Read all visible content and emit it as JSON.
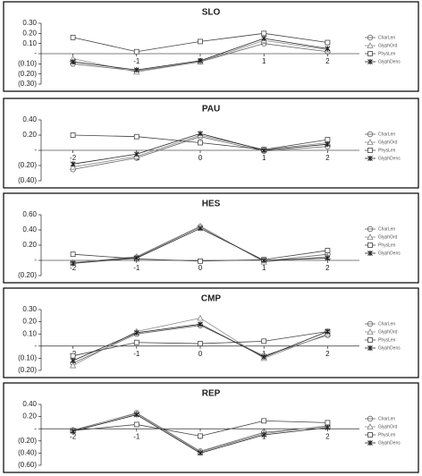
{
  "chart_data": [
    {
      "type": "line",
      "title": "SLO",
      "x": [
        -2,
        -1,
        0,
        1,
        2
      ],
      "xlim": [
        -2.5,
        2.5
      ],
      "xticks": [
        -2,
        -1,
        0,
        1,
        2
      ],
      "ylim": [
        -0.3,
        0.3
      ],
      "yticks": [
        {
          "value": 0.3,
          "label": "0.30"
        },
        {
          "value": 0.2,
          "label": "0.20"
        },
        {
          "value": 0.1,
          "label": "0.10"
        },
        {
          "value": 0,
          "label": "-"
        },
        {
          "value": -0.1,
          "label": "(0.10)"
        },
        {
          "value": -0.2,
          "label": "(0.20)"
        },
        {
          "value": -0.3,
          "label": "(0.30)"
        }
      ],
      "series": [
        {
          "name": "CharLen",
          "color": "#666666",
          "marker": "circle",
          "values": [
            -0.1,
            -0.17,
            -0.08,
            0.1,
            0.02
          ]
        },
        {
          "name": "GlyphOrd",
          "color": "#888888",
          "marker": "triangle",
          "values": [
            -0.05,
            -0.18,
            -0.08,
            0.13,
            0.04
          ]
        },
        {
          "name": "PhysLen",
          "color": "#444444",
          "marker": "square",
          "values": [
            0.16,
            0.02,
            0.12,
            0.2,
            0.11
          ]
        },
        {
          "name": "GlyphDens",
          "color": "#222222",
          "marker": "star",
          "values": [
            -0.08,
            -0.16,
            -0.07,
            0.15,
            0.05
          ]
        }
      ]
    },
    {
      "type": "line",
      "title": "PAU",
      "x": [
        -2,
        -1,
        0,
        1,
        2
      ],
      "xlim": [
        -2.5,
        2.5
      ],
      "xticks": [
        -2,
        -1,
        0,
        1,
        2
      ],
      "ylim": [
        -0.4,
        0.4
      ],
      "yticks": [
        {
          "value": 0.4,
          "label": "0.40"
        },
        {
          "value": 0.2,
          "label": "0.20"
        },
        {
          "value": 0,
          "label": "-"
        },
        {
          "value": -0.2,
          "label": "(0.20)"
        },
        {
          "value": -0.4,
          "label": "(0.40)"
        }
      ],
      "series": [
        {
          "name": "CharLen",
          "color": "#666666",
          "marker": "circle",
          "values": [
            -0.25,
            -0.1,
            0.18,
            -0.01,
            0.05
          ]
        },
        {
          "name": "GlyphOrd",
          "color": "#888888",
          "marker": "triangle",
          "values": [
            -0.22,
            -0.08,
            0.2,
            0.01,
            0.1
          ]
        },
        {
          "name": "PhysLen",
          "color": "#444444",
          "marker": "square",
          "values": [
            0.2,
            0.18,
            0.1,
            0.01,
            0.14
          ]
        },
        {
          "name": "GlyphDens",
          "color": "#222222",
          "marker": "star",
          "values": [
            -0.18,
            -0.05,
            0.22,
            0,
            0.08
          ]
        }
      ]
    },
    {
      "type": "line",
      "title": "HES",
      "x": [
        -2,
        -1,
        0,
        1,
        2
      ],
      "xlim": [
        -2.5,
        2.5
      ],
      "xticks": [
        -2,
        -1,
        0,
        1,
        2
      ],
      "ylim": [
        -0.2,
        0.6
      ],
      "yticks": [
        {
          "value": 0.6,
          "label": "0.60"
        },
        {
          "value": 0.4,
          "label": "0.40"
        },
        {
          "value": 0.2,
          "label": "0.20"
        },
        {
          "value": 0,
          "label": "-"
        },
        {
          "value": -0.2,
          "label": "(0.20)"
        }
      ],
      "series": [
        {
          "name": "CharLen",
          "color": "#666666",
          "marker": "circle",
          "values": [
            -0.03,
            0.04,
            0.44,
            -0.01,
            0.08
          ]
        },
        {
          "name": "GlyphOrd",
          "color": "#888888",
          "marker": "triangle",
          "values": [
            -0.03,
            0.05,
            0.45,
            -0.02,
            0.05
          ]
        },
        {
          "name": "PhysLen",
          "color": "#444444",
          "marker": "square",
          "values": [
            0.08,
            0.02,
            -0.01,
            0.01,
            0.13
          ]
        },
        {
          "name": "GlyphDens",
          "color": "#222222",
          "marker": "star",
          "values": [
            -0.04,
            0.03,
            0.42,
            0,
            0.03
          ]
        }
      ]
    },
    {
      "type": "line",
      "title": "CMP",
      "x": [
        -2,
        -1,
        0,
        1,
        2
      ],
      "xlim": [
        -2.5,
        2.5
      ],
      "xticks": [
        -2,
        -1,
        0,
        1,
        2
      ],
      "ylim": [
        -0.2,
        0.3
      ],
      "yticks": [
        {
          "value": 0.3,
          "label": "0.30"
        },
        {
          "value": 0.2,
          "label": "0.20"
        },
        {
          "value": 0.1,
          "label": "0.10"
        },
        {
          "value": 0,
          "label": "-"
        },
        {
          "value": -0.1,
          "label": "(0.10)"
        },
        {
          "value": -0.2,
          "label": "(0.20)"
        }
      ],
      "series": [
        {
          "name": "CharLen",
          "color": "#666666",
          "marker": "circle",
          "values": [
            -0.14,
            0.1,
            0.17,
            -0.08,
            0.09
          ]
        },
        {
          "name": "GlyphOrd",
          "color": "#888888",
          "marker": "triangle",
          "values": [
            -0.16,
            0.12,
            0.23,
            -0.1,
            0.1
          ]
        },
        {
          "name": "PhysLen",
          "color": "#444444",
          "marker": "square",
          "values": [
            -0.08,
            0.03,
            0.02,
            0.04,
            0.12
          ]
        },
        {
          "name": "GlyphDens",
          "color": "#222222",
          "marker": "star",
          "values": [
            -0.12,
            0.11,
            0.18,
            -0.09,
            0.12
          ]
        }
      ]
    },
    {
      "type": "line",
      "title": "REP",
      "x": [
        -2,
        -1,
        0,
        1,
        2
      ],
      "xlim": [
        -2.5,
        2.5
      ],
      "xticks": [
        -2,
        -1,
        0,
        1,
        2
      ],
      "ylim": [
        -0.6,
        0.4
      ],
      "yticks": [
        {
          "value": 0.4,
          "label": "0.40"
        },
        {
          "value": 0.2,
          "label": "0.20"
        },
        {
          "value": 0,
          "label": "-"
        },
        {
          "value": -0.2,
          "label": "(0.20)"
        },
        {
          "value": -0.4,
          "label": "(0.40)"
        },
        {
          "value": -0.6,
          "label": "(0.60)"
        }
      ],
      "series": [
        {
          "name": "CharLen",
          "color": "#666666",
          "marker": "circle",
          "values": [
            -0.03,
            0.26,
            -0.37,
            -0.06,
            0.04
          ]
        },
        {
          "name": "GlyphOrd",
          "color": "#888888",
          "marker": "triangle",
          "values": [
            -0.02,
            0.25,
            -0.38,
            -0.08,
            0.05
          ]
        },
        {
          "name": "PhysLen",
          "color": "#444444",
          "marker": "square",
          "values": [
            -0.03,
            0.07,
            -0.12,
            0.13,
            0.1
          ]
        },
        {
          "name": "GlyphDens",
          "color": "#222222",
          "marker": "star",
          "values": [
            -0.04,
            0.23,
            -0.4,
            -0.1,
            0.02
          ]
        }
      ]
    }
  ]
}
